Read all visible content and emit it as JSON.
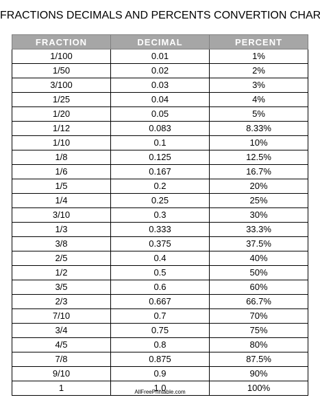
{
  "title": "FRACTIONS DECIMALS AND PERCENTS CONVERTION CHART",
  "headers": [
    "FRACTION",
    "DECIMAL",
    "PERCENT"
  ],
  "rows": [
    [
      "1/100",
      "0.01",
      "1%"
    ],
    [
      "1/50",
      "0.02",
      "2%"
    ],
    [
      "3/100",
      "0.03",
      "3%"
    ],
    [
      "1/25",
      "0.04",
      "4%"
    ],
    [
      "1/20",
      "0.05",
      "5%"
    ],
    [
      "1/12",
      "0.083",
      "8.33%"
    ],
    [
      "1/10",
      "0.1",
      "10%"
    ],
    [
      "1/8",
      "0.125",
      "12.5%"
    ],
    [
      "1/6",
      "0.167",
      "16.7%"
    ],
    [
      "1/5",
      "0.2",
      "20%"
    ],
    [
      "1/4",
      "0.25",
      "25%"
    ],
    [
      "3/10",
      "0.3",
      "30%"
    ],
    [
      "1/3",
      "0.333",
      "33.3%"
    ],
    [
      "3/8",
      "0.375",
      "37.5%"
    ],
    [
      "2/5",
      "0.4",
      "40%"
    ],
    [
      "1/2",
      "0.5",
      "50%"
    ],
    [
      "3/5",
      "0.6",
      "60%"
    ],
    [
      "2/3",
      "0.667",
      "66.7%"
    ],
    [
      "7/10",
      "0.7",
      "70%"
    ],
    [
      "3/4",
      "0.75",
      "75%"
    ],
    [
      "4/5",
      "0.8",
      "80%"
    ],
    [
      "7/8",
      "0.875",
      "87.5%"
    ],
    [
      "9/10",
      "0.9",
      "90%"
    ],
    [
      "1",
      "1.0",
      "100%"
    ]
  ],
  "footer": "AllFreePrintable.com",
  "colors": {
    "header_bg": "#a6a6a6",
    "header_text": "#ffffff",
    "border": "#000000"
  }
}
